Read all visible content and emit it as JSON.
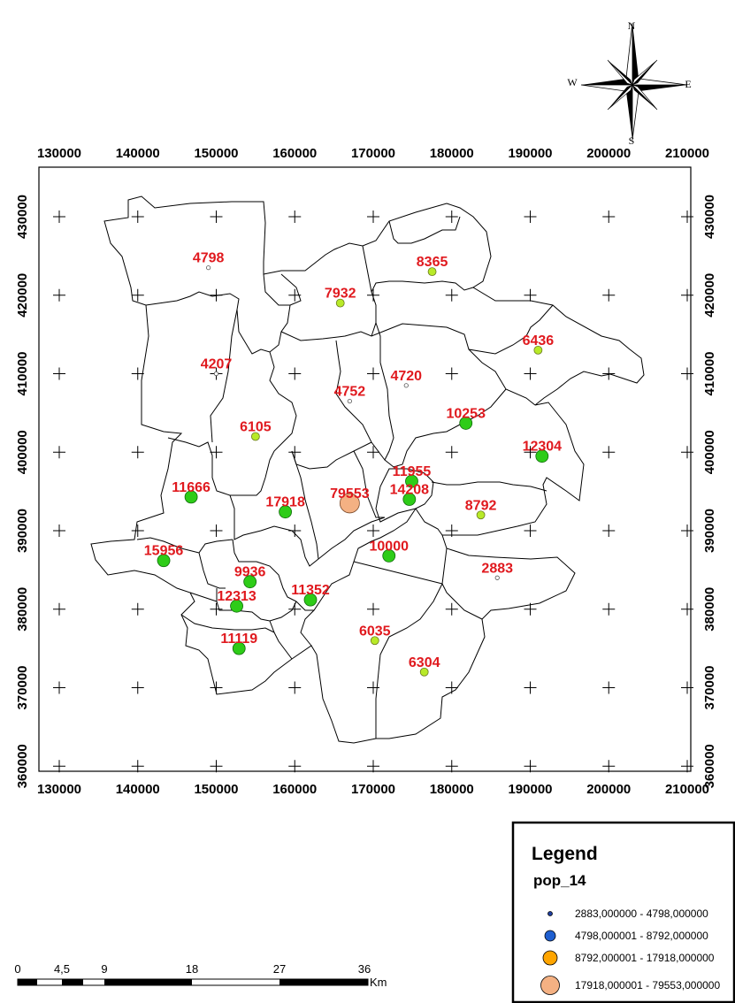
{
  "compass": {
    "north": "N",
    "south": "S",
    "east": "E",
    "west": "W"
  },
  "x_ticks": [
    "130000",
    "140000",
    "150000",
    "160000",
    "170000",
    "180000",
    "190000",
    "200000",
    "210000"
  ],
  "y_ticks": [
    "430000",
    "420000",
    "410000",
    "400000",
    "390000",
    "380000",
    "370000",
    "360000"
  ],
  "points": [
    {
      "label": "4798",
      "x": 149000,
      "y": 423500,
      "cls": 0
    },
    {
      "label": "8365",
      "x": 177500,
      "y": 423000,
      "cls": 1
    },
    {
      "label": "7932",
      "x": 165800,
      "y": 419000,
      "cls": 1
    },
    {
      "label": "4207",
      "x": 150000,
      "y": 410000,
      "cls": 0
    },
    {
      "label": "4720",
      "x": 174200,
      "y": 408500,
      "cls": 0
    },
    {
      "label": "6436",
      "x": 191000,
      "y": 413000,
      "cls": 1
    },
    {
      "label": "4752",
      "x": 167000,
      "y": 406500,
      "cls": 0
    },
    {
      "label": "10253",
      "x": 181800,
      "y": 403700,
      "cls": 2
    },
    {
      "label": "6105",
      "x": 155000,
      "y": 402000,
      "cls": 1
    },
    {
      "label": "12304",
      "x": 191500,
      "y": 399500,
      "cls": 2
    },
    {
      "label": "11955",
      "x": 174900,
      "y": 396300,
      "cls": 2
    },
    {
      "label": "11666",
      "x": 146800,
      "y": 394300,
      "cls": 2
    },
    {
      "label": "14208",
      "x": 174600,
      "y": 394000,
      "cls": 2
    },
    {
      "label": "17918",
      "x": 158800,
      "y": 392400,
      "cls": 2
    },
    {
      "label": "79553",
      "x": 167000,
      "y": 393500,
      "cls": 3
    },
    {
      "label": "8792",
      "x": 183700,
      "y": 392000,
      "cls": 1
    },
    {
      "label": "15956",
      "x": 143300,
      "y": 386200,
      "cls": 2
    },
    {
      "label": "10000",
      "x": 172000,
      "y": 386800,
      "cls": 2
    },
    {
      "label": "9936",
      "x": 154300,
      "y": 383500,
      "cls": 2
    },
    {
      "label": "11352",
      "x": 162000,
      "y": 381200,
      "cls": 2
    },
    {
      "label": "2883",
      "x": 185800,
      "y": 384000,
      "cls": 0
    },
    {
      "label": "12313",
      "x": 152600,
      "y": 380400,
      "cls": 2
    },
    {
      "label": "11119",
      "x": 152900,
      "y": 375000,
      "cls": 2
    },
    {
      "label": "6035",
      "x": 170200,
      "y": 376000,
      "cls": 1
    },
    {
      "label": "6304",
      "x": 176500,
      "y": 372000,
      "cls": 1
    }
  ],
  "legend": {
    "title": "Legend",
    "field": "pop_14",
    "classes": [
      {
        "label": "2883,000000 - 4798,000000",
        "color": "#1f3fa0"
      },
      {
        "label": "4798,000001 - 8792,000000",
        "color": "#1f5fd0"
      },
      {
        "label": "8792,000001 - 17918,000000",
        "color": "#ffa500"
      },
      {
        "label": "17918,000001 - 79553,000000",
        "color": "#f4b183"
      }
    ]
  },
  "symbol_colors": {
    "small": "#ffffff",
    "medium": "#b8ea28",
    "large": "#2ecc18",
    "largest": "#f4b183"
  },
  "scale_bar": {
    "labels": [
      "0",
      "4,5",
      "9",
      "18",
      "27",
      "36"
    ],
    "unit": "Km"
  }
}
